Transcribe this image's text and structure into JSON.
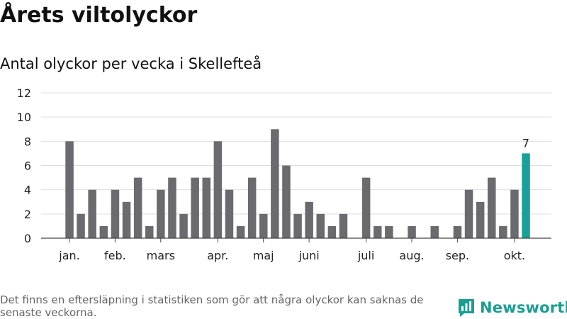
{
  "title": "Årets viltolyckor",
  "subtitle": "Antal olyckor per vecka i Skellefteå",
  "footnote": "Det finns en eftersläpning i statistiken som gör att några olyckor kan saknas de senaste veckorna.",
  "brand": {
    "name": "Newsworthy",
    "icon": "bar-chart-logo-icon",
    "color": "#1a9e92"
  },
  "chart_data": {
    "type": "bar",
    "title": "Antal olyckor per vecka i Skellefteå",
    "x": [
      1,
      2,
      3,
      4,
      5,
      6,
      7,
      8,
      9,
      10,
      11,
      12,
      13,
      14,
      15,
      16,
      17,
      18,
      19,
      20,
      21,
      22,
      23,
      24,
      25,
      26,
      27,
      28,
      29,
      30,
      31,
      32,
      33,
      34,
      35,
      36,
      37,
      38,
      39,
      40,
      41
    ],
    "values": [
      8,
      2,
      4,
      1,
      4,
      3,
      5,
      1,
      4,
      5,
      2,
      5,
      5,
      8,
      4,
      1,
      5,
      2,
      9,
      6,
      2,
      3,
      2,
      1,
      2,
      0,
      5,
      1,
      1,
      0,
      1,
      0,
      1,
      0,
      1,
      4,
      3,
      5,
      1,
      4,
      7
    ],
    "ylim": [
      0,
      12
    ],
    "yticks": [
      0,
      2,
      4,
      6,
      8,
      10,
      12
    ],
    "xtick_labels": [
      {
        "label": "jan.",
        "week": 1
      },
      {
        "label": "feb.",
        "week": 5
      },
      {
        "label": "mars",
        "week": 9
      },
      {
        "label": "apr.",
        "week": 14
      },
      {
        "label": "maj",
        "week": 18
      },
      {
        "label": "juni",
        "week": 22
      },
      {
        "label": "juli",
        "week": 27
      },
      {
        "label": "aug.",
        "week": 31
      },
      {
        "label": "sep.",
        "week": 35
      },
      {
        "label": "okt.",
        "week": 40
      }
    ],
    "highlight": {
      "index": 40,
      "label": "7"
    },
    "colors": {
      "bar": "#6b6a6f",
      "highlight": "#17a198",
      "grid": "#dddddd",
      "axis": "#444444"
    },
    "grid": true,
    "legend": "none"
  }
}
